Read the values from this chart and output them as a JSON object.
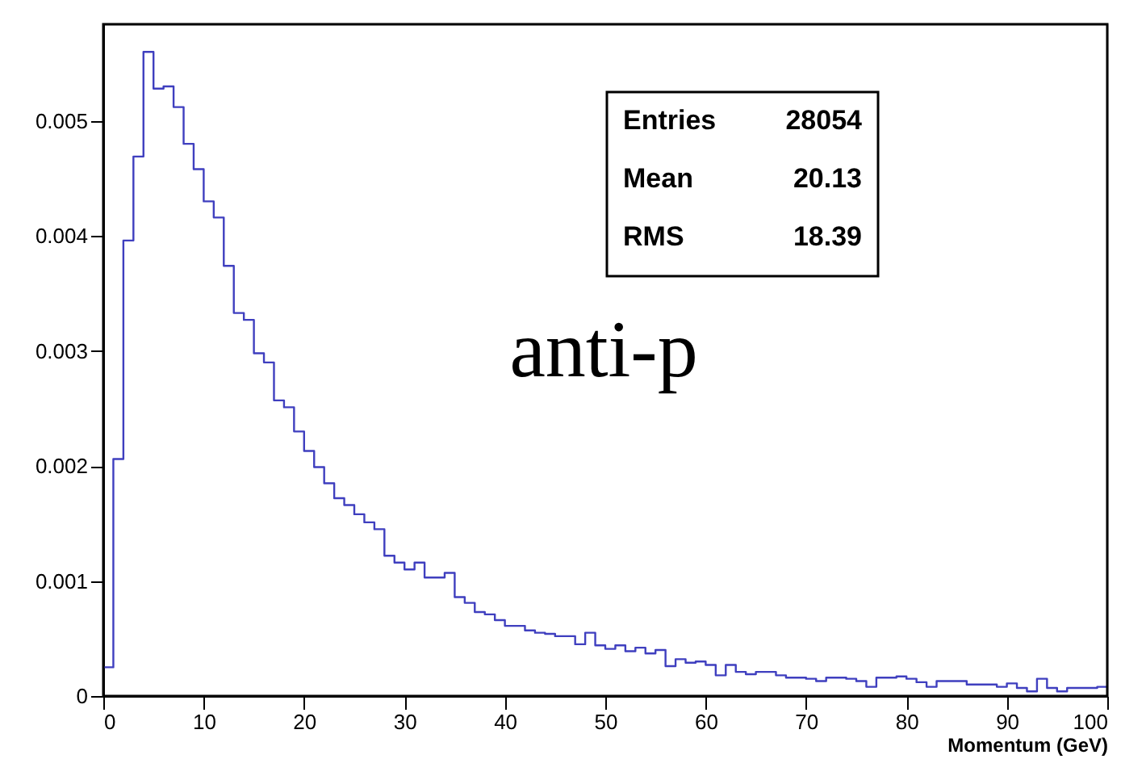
{
  "chart_data": {
    "type": "histogram",
    "title": "anti-p",
    "xlabel": "Momentum (GeV)",
    "bins": [
      0,
      1,
      2,
      3,
      4,
      5,
      6,
      7,
      8,
      9,
      10,
      11,
      12,
      13,
      14,
      15,
      16,
      17,
      18,
      19,
      20,
      21,
      22,
      23,
      24,
      25,
      26,
      27,
      28,
      29,
      30,
      31,
      32,
      33,
      34,
      35,
      36,
      37,
      38,
      39,
      40,
      41,
      42,
      43,
      44,
      45,
      46,
      47,
      48,
      49,
      50,
      51,
      52,
      53,
      54,
      55,
      56,
      57,
      58,
      59,
      60,
      61,
      62,
      63,
      64,
      65,
      66,
      67,
      68,
      69,
      70,
      71,
      72,
      73,
      74,
      75,
      76,
      77,
      78,
      79,
      80,
      81,
      82,
      83,
      84,
      85,
      86,
      87,
      88,
      89,
      90,
      91,
      92,
      93,
      94,
      95,
      96,
      97,
      98,
      99,
      100
    ],
    "values": [
      0.00025,
      0.00206,
      0.00396,
      0.00469,
      0.0056,
      0.00528,
      0.0053,
      0.00512,
      0.0048,
      0.00458,
      0.0043,
      0.00416,
      0.00374,
      0.00333,
      0.00327,
      0.00298,
      0.0029,
      0.00257,
      0.00251,
      0.0023,
      0.00213,
      0.00199,
      0.00185,
      0.00172,
      0.00166,
      0.00158,
      0.00151,
      0.00145,
      0.00122,
      0.00116,
      0.0011,
      0.00116,
      0.00103,
      0.00103,
      0.00107,
      0.00086,
      0.00081,
      0.00073,
      0.00071,
      0.00066,
      0.00061,
      0.00061,
      0.00057,
      0.00055,
      0.00054,
      0.00052,
      0.00052,
      0.00045,
      0.00055,
      0.00044,
      0.00041,
      0.00044,
      0.00039,
      0.00042,
      0.00037,
      0.0004,
      0.00026,
      0.00032,
      0.00029,
      0.0003,
      0.00027,
      0.00018,
      0.00027,
      0.00021,
      0.00019,
      0.00021,
      0.00021,
      0.00018,
      0.00016,
      0.00016,
      0.00015,
      0.00013,
      0.00016,
      0.00016,
      0.00015,
      0.00013,
      8e-05,
      0.00016,
      0.00016,
      0.00017,
      0.00015,
      0.00012,
      8e-05,
      0.00013,
      0.00013,
      0.00013,
      0.0001,
      0.0001,
      0.0001,
      8e-05,
      0.00011,
      7e-05,
      4e-05,
      0.00015,
      7e-05,
      4e-05,
      7e-05,
      7e-05,
      7e-05,
      8e-05
    ],
    "color": "#3f3fbf",
    "xlim": [
      0,
      100
    ],
    "xticks": [
      0,
      10,
      20,
      30,
      40,
      50,
      60,
      70,
      80,
      90,
      100
    ],
    "ylim": [
      0,
      0.00584
    ],
    "yticks": [
      0,
      0.001,
      0.002,
      0.003,
      0.004,
      0.005
    ],
    "grid": false,
    "annotations": [
      "Entries",
      "28054",
      "Mean",
      "20.13",
      "RMS",
      "18.39"
    ]
  }
}
